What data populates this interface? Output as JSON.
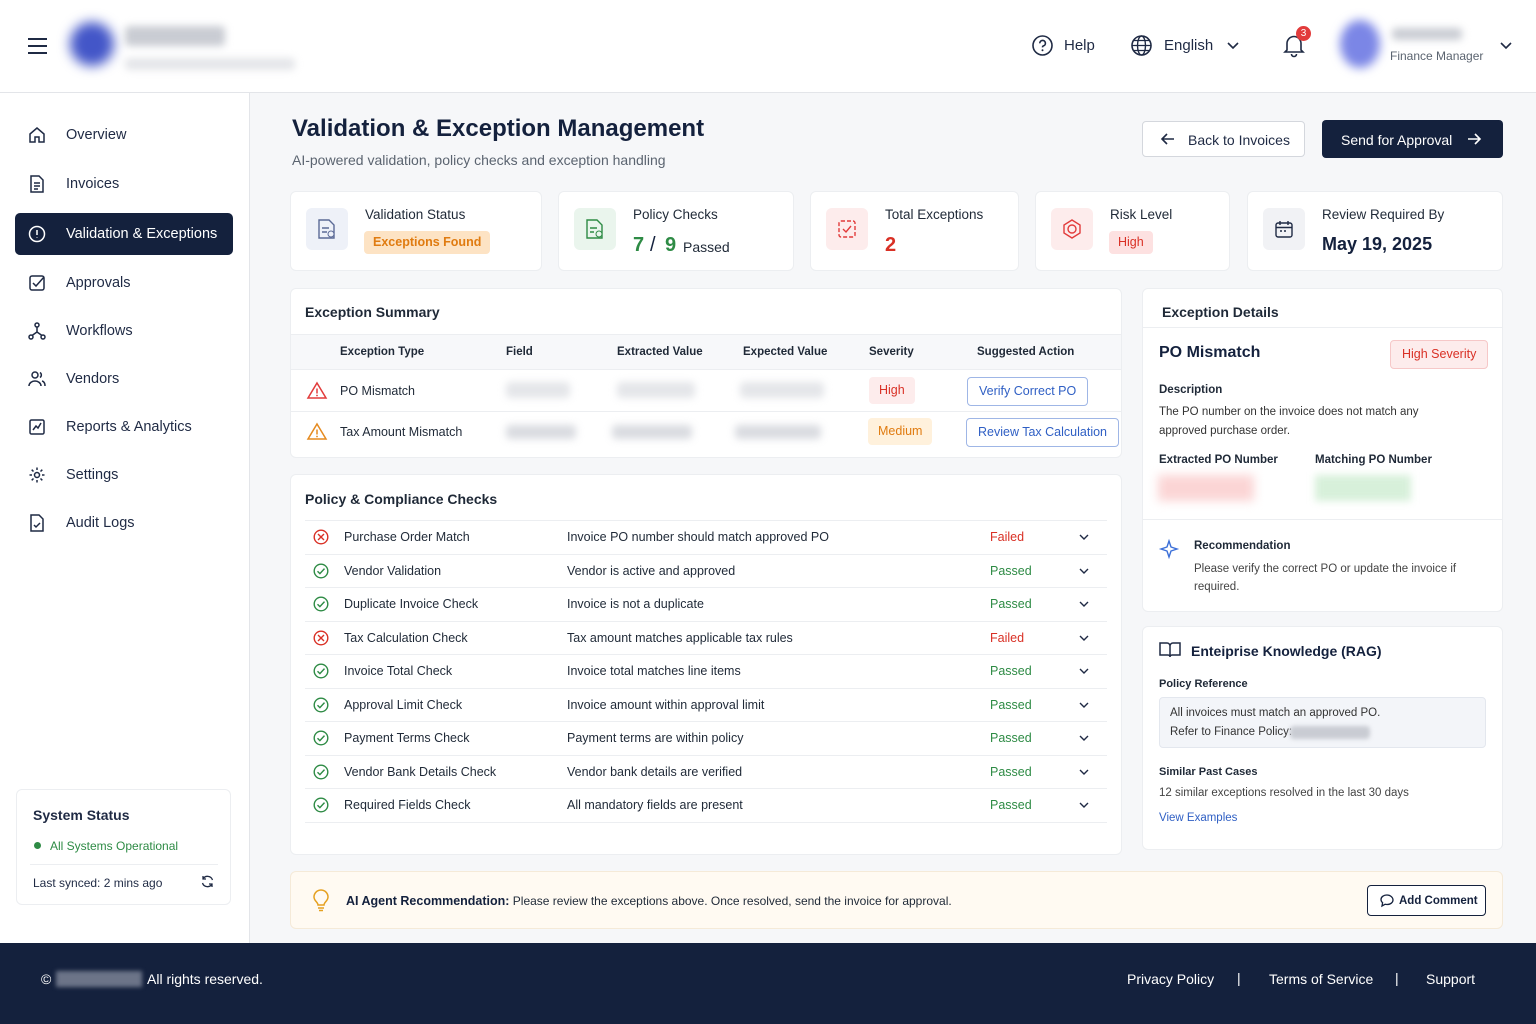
{
  "header": {
    "help": "Help",
    "language": "English",
    "notification_count": 3,
    "user_role": "Finance Manager"
  },
  "nav": {
    "items": [
      "Overview",
      "Invoices",
      "Validation & Exceptions",
      "Approvals",
      "Workflows",
      "Vendors",
      "Reports & Analytics",
      "Settings",
      "Audit Logs"
    ]
  },
  "system_status": {
    "title": "System Status",
    "status": "All Systems Operational",
    "last_synced": "Last synced: 2 mins ago"
  },
  "page": {
    "title": "Validation & Exception Management",
    "subtitle": "AI-powered validation, policy checks and exception handling",
    "back_button": "Back to Invoices",
    "primary_button": "Send for Approval"
  },
  "stats": [
    {
      "label": "Validation Status",
      "badge": "Exceptions Found"
    },
    {
      "label": "Policy Checks",
      "passed": 7,
      "separator": "/",
      "total": 9,
      "suffix": "Passed"
    },
    {
      "label": "Total Exceptions",
      "value": 2
    },
    {
      "label": "Risk Level",
      "badge": "High"
    },
    {
      "label": "Review Required By",
      "value": "May 19, 2025"
    }
  ],
  "exception_summary": {
    "title": "Exception Summary",
    "columns": [
      "Exception Type",
      "Field",
      "Extracted Value",
      "Expected Value",
      "Severity",
      "Suggested Action"
    ],
    "rows": [
      {
        "type": "PO Mismatch",
        "severity": "High",
        "action": "Verify Correct PO"
      },
      {
        "type": "Tax Amount Mismatch",
        "severity": "Medium",
        "action": "Review Tax Calculation"
      }
    ]
  },
  "policy_checks": {
    "title": "Policy & Compliance Checks",
    "rows": [
      {
        "name": "Purchase Order Match",
        "description": "Invoice PO number should match approved PO",
        "status": "Failed"
      },
      {
        "name": "Vendor Validation",
        "description": "Vendor is active and approved",
        "status": "Passed"
      },
      {
        "name": "Duplicate Invoice Check",
        "description": "Invoice is not a duplicate",
        "status": "Passed"
      },
      {
        "name": "Tax Calculation Check",
        "description": "Tax amount matches applicable tax rules",
        "status": "Failed"
      },
      {
        "name": "Invoice Total Check",
        "description": "Invoice total matches line items",
        "status": "Passed"
      },
      {
        "name": "Approval Limit Check",
        "description": "Invoice amount within approval limit",
        "status": "Passed"
      },
      {
        "name": "Payment Terms Check",
        "description": "Payment terms are within policy",
        "status": "Passed"
      },
      {
        "name": "Vendor Bank Details Check",
        "description": "Vendor bank details are verified",
        "status": "Passed"
      },
      {
        "name": "Required Fields Check",
        "description": "All mandatory fields are present",
        "status": "Passed"
      }
    ]
  },
  "exception_details": {
    "title": "Exception Details",
    "name": "PO Mismatch",
    "severity": "High Severity",
    "description_label": "Description",
    "description": "The PO number on the invoice does not match any approved purchase order.",
    "extracted_label": "Extracted PO Number",
    "matching_label": "Matching PO Number",
    "recommendation_title": "Recommendation",
    "recommendation": "Please verify the correct PO or update the invoice if required."
  },
  "knowledge": {
    "title": "Enteiprise Knowledge (RAG)",
    "policy_ref_label": "Policy Reference",
    "policy_ref_lines": [
      "All invoices must match an approved PO.",
      "Refer to Finance Policy:"
    ],
    "similar_label": "Similar Past Cases",
    "similar": "12 similar exceptions resolved in the last 30 days",
    "link": "View Examples"
  },
  "ai_banner": {
    "label": "AI Agent Recommendation:",
    "text": "Please review the exceptions above. Once resolved, send the invoice for approval.",
    "button": "Add Comment"
  },
  "footer": {
    "copyright_symbol": "©",
    "rights": "All rights reserved.",
    "links": [
      "Privacy Policy",
      "Terms of Service",
      "Support"
    ],
    "separator": "|"
  }
}
